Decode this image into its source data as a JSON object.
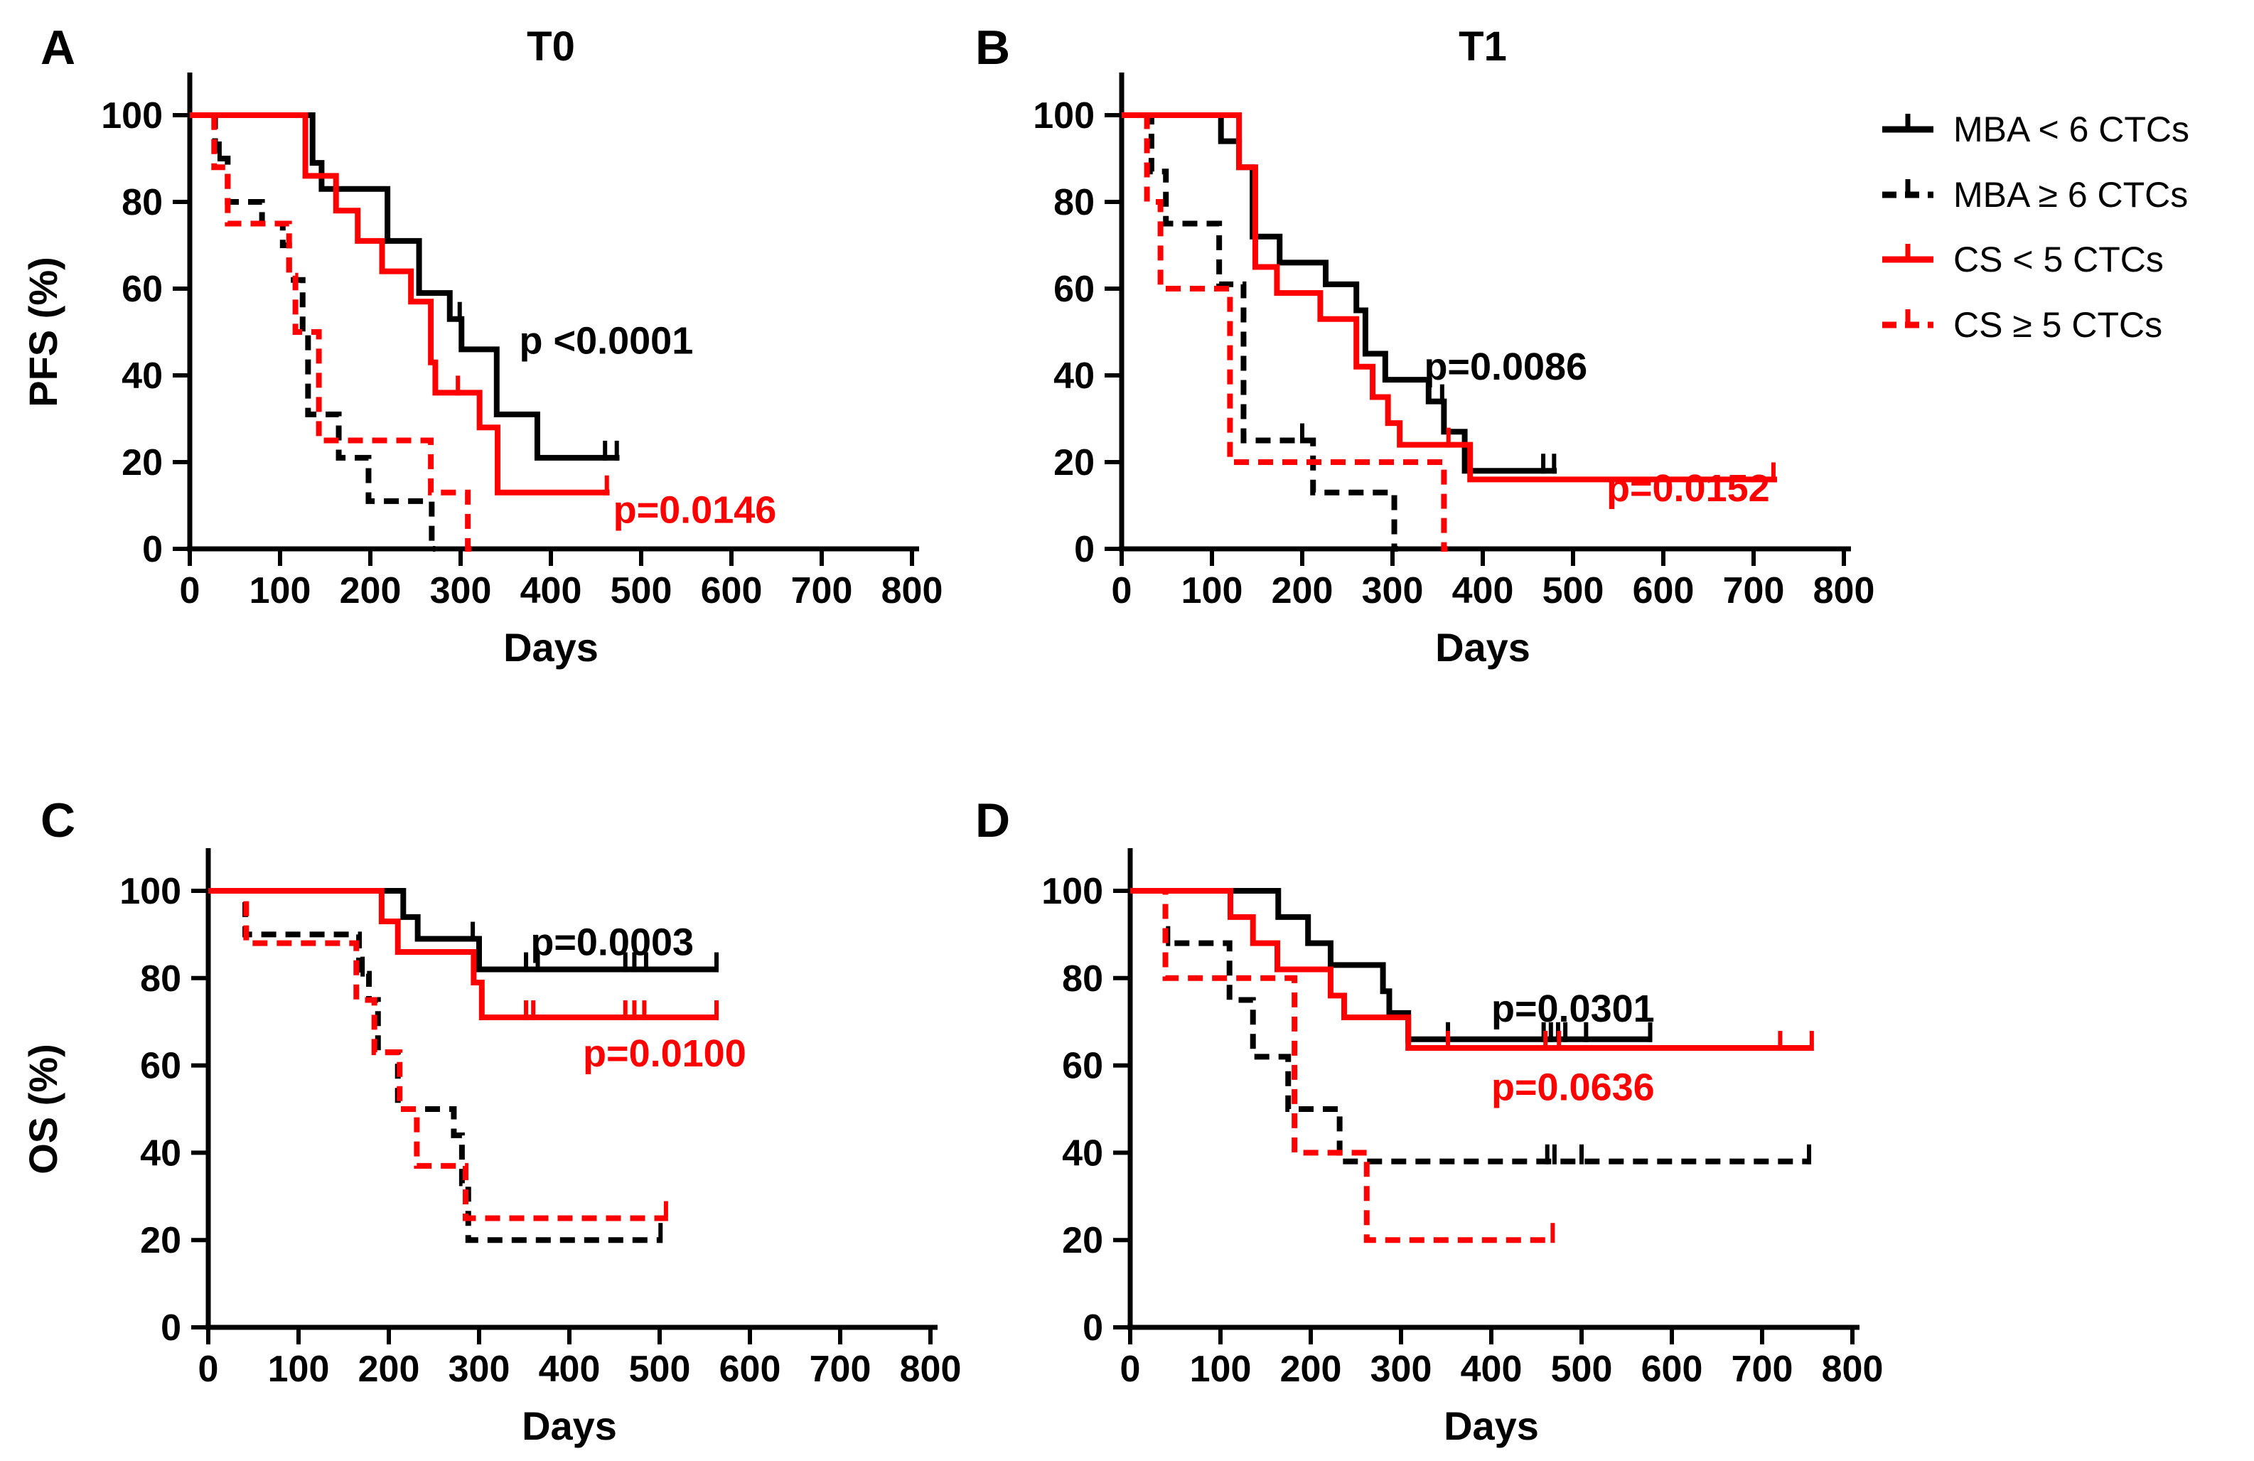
{
  "figure": {
    "kind": "kaplan-meier-survival-figure",
    "background": "#FFFFFF",
    "accent_colors": {
      "black": "#000000",
      "red": "#FF0000"
    }
  },
  "legend": {
    "entries": [
      {
        "label": "MBA < 6 CTCs",
        "color": "#000000",
        "dash": false
      },
      {
        "label": "MBA ≥ 6 CTCs",
        "color": "#000000",
        "dash": true
      },
      {
        "label": "CS < 5 CTCs",
        "color": "#FF0000",
        "dash": false
      },
      {
        "label": "CS ≥ 5 CTCs",
        "color": "#FF0000",
        "dash": true
      }
    ]
  },
  "chart_data": {
    "type": "line",
    "subtype": "kaplan-meier-step",
    "grid": false,
    "legend_position": "top-right",
    "panels": [
      {
        "id": "A",
        "letter": "A",
        "title": "T0",
        "ylabel": "PFS (%)",
        "xlabel": "Days",
        "xlim": [
          0,
          800
        ],
        "ylim": [
          0,
          100
        ],
        "xticks": [
          0,
          100,
          200,
          300,
          400,
          500,
          600,
          700,
          800
        ],
        "yticks": [
          0,
          20,
          40,
          60,
          80,
          100
        ],
        "annotations": [
          {
            "text": "p <0.0001",
            "color": "#000000",
            "day": 365,
            "pct": 45
          },
          {
            "text": "p=0.0146",
            "color": "#FF0000",
            "day": 469,
            "pct": 6
          }
        ],
        "series": [
          {
            "name": "MBA < 6 CTCs",
            "color": "#000000",
            "dash": false,
            "end": 476,
            "steps": [
              [
                0,
                100
              ],
              [
                136,
                89
              ],
              [
                146,
                83
              ],
              [
                219,
                71
              ],
              [
                254,
                59
              ],
              [
                288,
                53
              ],
              [
                301,
                46
              ],
              [
                340,
                31
              ],
              [
                385,
                21
              ]
            ],
            "censors": [
              [
                299,
                53
              ],
              [
                460,
                21
              ],
              [
                473,
                21
              ]
            ]
          },
          {
            "name": "MBA ≥ 6 CTCs",
            "color": "#000000",
            "dash": true,
            "end": 272,
            "steps": [
              [
                0,
                100
              ],
              [
                28,
                90
              ],
              [
                42,
                80
              ],
              [
                80,
                75
              ],
              [
                103,
                70
              ],
              [
                110,
                62
              ],
              [
                125,
                50
              ],
              [
                131,
                31
              ],
              [
                165,
                21
              ],
              [
                198,
                11
              ],
              [
                268,
                0
              ]
            ],
            "censors": [
              [
                33,
                90
              ]
            ]
          },
          {
            "name": "CS < 5 CTCs",
            "color": "#FF0000",
            "dash": false,
            "end": 465,
            "steps": [
              [
                0,
                100
              ],
              [
                128,
                86
              ],
              [
                162,
                78
              ],
              [
                186,
                71
              ],
              [
                213,
                64
              ],
              [
                245,
                57
              ],
              [
                267,
                43
              ],
              [
                272,
                36
              ],
              [
                321,
                28
              ],
              [
                341,
                13
              ]
            ],
            "censors": [
              [
                297,
                36
              ],
              [
                462,
                13
              ]
            ]
          },
          {
            "name": "CS ≥ 5 CTCs",
            "color": "#FF0000",
            "dash": true,
            "end": 312,
            "steps": [
              [
                0,
                100
              ],
              [
                27,
                88
              ],
              [
                42,
                75
              ],
              [
                110,
                63
              ],
              [
                117,
                50
              ],
              [
                143,
                25
              ],
              [
                267,
                13
              ],
              [
                308,
                0
              ]
            ],
            "censors": []
          }
        ]
      },
      {
        "id": "B",
        "letter": "B",
        "title": "T1",
        "ylabel": "",
        "xlabel": "Days",
        "xlim": [
          0,
          800
        ],
        "ylim": [
          0,
          100
        ],
        "xticks": [
          0,
          100,
          200,
          300,
          400,
          500,
          600,
          700,
          800
        ],
        "yticks": [
          0,
          20,
          40,
          60,
          80,
          100
        ],
        "annotations": [
          {
            "text": "p=0.0086",
            "color": "#000000",
            "day": 335,
            "pct": 39
          },
          {
            "text": "p=0.0152",
            "color": "#FF0000",
            "day": 537,
            "pct": 11
          }
        ],
        "series": [
          {
            "name": "MBA < 6 CTCs",
            "color": "#000000",
            "dash": false,
            "end": 482,
            "steps": [
              [
                0,
                100
              ],
              [
                110,
                94
              ],
              [
                130,
                88
              ],
              [
                145,
                72
              ],
              [
                175,
                66
              ],
              [
                226,
                61
              ],
              [
                260,
                55
              ],
              [
                270,
                45
              ],
              [
                292,
                39
              ],
              [
                340,
                34
              ],
              [
                357,
                27
              ],
              [
                380,
                18
              ]
            ],
            "censors": [
              [
                355,
                34
              ],
              [
                467,
                18
              ],
              [
                479,
                18
              ]
            ]
          },
          {
            "name": "MBA ≥ 6 CTCs",
            "color": "#000000",
            "dash": true,
            "end": 306,
            "steps": [
              [
                0,
                100
              ],
              [
                33,
                87
              ],
              [
                49,
                75
              ],
              [
                108,
                61
              ],
              [
                135,
                25
              ],
              [
                212,
                13
              ],
              [
                302,
                0
              ]
            ],
            "censors": [
              [
                200,
                25
              ]
            ]
          },
          {
            "name": "CS < 5 CTCs",
            "color": "#FF0000",
            "dash": false,
            "end": 726,
            "steps": [
              [
                0,
                100
              ],
              [
                130,
                88
              ],
              [
                148,
                65
              ],
              [
                172,
                59
              ],
              [
                220,
                53
              ],
              [
                260,
                42
              ],
              [
                278,
                35
              ],
              [
                295,
                29
              ],
              [
                308,
                24
              ],
              [
                386,
                16
              ]
            ],
            "censors": [
              [
                362,
                24
              ],
              [
                722,
                16
              ]
            ]
          },
          {
            "name": "CS ≥ 5 CTCs",
            "color": "#FF0000",
            "dash": true,
            "end": 361,
            "steps": [
              [
                0,
                100
              ],
              [
                28,
                80
              ],
              [
                43,
                60
              ],
              [
                120,
                20
              ],
              [
                357,
                0
              ]
            ],
            "censors": []
          }
        ]
      },
      {
        "id": "C",
        "letter": "C",
        "title": "",
        "ylabel": "OS (%)",
        "xlabel": "Days",
        "xlim": [
          0,
          800
        ],
        "ylim": [
          0,
          100
        ],
        "xticks": [
          0,
          100,
          200,
          300,
          400,
          500,
          600,
          700,
          800
        ],
        "yticks": [
          0,
          20,
          40,
          60,
          80,
          100
        ],
        "annotations": [
          {
            "text": "p=0.0003",
            "color": "#000000",
            "day": 357,
            "pct": 85.3
          },
          {
            "text": "p=0.0100",
            "color": "#FF0000",
            "day": 415,
            "pct": 59.8
          }
        ],
        "series": [
          {
            "name": "MBA < 6 CTCs",
            "color": "#000000",
            "dash": false,
            "end": 565,
            "steps": [
              [
                0,
                100
              ],
              [
                216,
                94
              ],
              [
                232,
                89
              ],
              [
                300,
                82
              ]
            ],
            "censors": [
              [
                293,
                89
              ],
              [
                352,
                82
              ],
              [
                365,
                82
              ],
              [
                462,
                82
              ],
              [
                472,
                82
              ],
              [
                485,
                82
              ],
              [
                563,
                82
              ]
            ]
          },
          {
            "name": "MBA ≥ 6 CTCs",
            "color": "#000000",
            "dash": true,
            "end": 503,
            "steps": [
              [
                0,
                100
              ],
              [
                41,
                90
              ],
              [
                167,
                81
              ],
              [
                178,
                75
              ],
              [
                188,
                63
              ],
              [
                210,
                50
              ],
              [
                272,
                44
              ],
              [
                281,
                33
              ],
              [
                288,
                20
              ]
            ],
            "censors": [
              [
                171,
                81
              ],
              [
                501,
                20
              ]
            ]
          },
          {
            "name": "CS < 5 CTCs",
            "color": "#FF0000",
            "dash": false,
            "end": 565,
            "steps": [
              [
                0,
                100
              ],
              [
                192,
                93
              ],
              [
                210,
                86
              ],
              [
                294,
                79
              ],
              [
                303,
                71
              ]
            ],
            "censors": [
              [
                352,
                71
              ],
              [
                360,
                71
              ],
              [
                462,
                71
              ],
              [
                472,
                71
              ],
              [
                483,
                71
              ],
              [
                563,
                71
              ]
            ]
          },
          {
            "name": "CS ≥ 5 CTCs",
            "color": "#FF0000",
            "dash": true,
            "end": 509,
            "steps": [
              [
                0,
                100
              ],
              [
                42,
                88
              ],
              [
                164,
                75
              ],
              [
                184,
                63
              ],
              [
                212,
                50
              ],
              [
                231,
                37
              ],
              [
                285,
                25
              ]
            ],
            "censors": [
              [
                507,
                25
              ]
            ]
          }
        ]
      },
      {
        "id": "D",
        "letter": "D",
        "title": "",
        "ylabel": "",
        "xlabel": "Days",
        "xlim": [
          0,
          800
        ],
        "ylim": [
          0,
          100
        ],
        "xticks": [
          0,
          100,
          200,
          300,
          400,
          500,
          600,
          700,
          800
        ],
        "yticks": [
          0,
          20,
          40,
          60,
          80,
          100
        ],
        "annotations": [
          {
            "text": "p=0.0301",
            "color": "#000000",
            "day": 400,
            "pct": 70
          },
          {
            "text": "p=0.0636",
            "color": "#FF0000",
            "day": 400,
            "pct": 52
          }
        ],
        "series": [
          {
            "name": "MBA < 6 CTCs",
            "color": "#000000",
            "dash": false,
            "end": 578,
            "steps": [
              [
                0,
                100
              ],
              [
                164,
                94
              ],
              [
                197,
                88
              ],
              [
                222,
                83
              ],
              [
                280,
                77
              ],
              [
                287,
                72
              ],
              [
                308,
                66
              ]
            ],
            "censors": [
              [
                352,
                66
              ],
              [
                458,
                66
              ],
              [
                466,
                66
              ],
              [
                474,
                66
              ],
              [
                482,
                66
              ],
              [
                505,
                66
              ],
              [
                576,
                66
              ]
            ]
          },
          {
            "name": "MBA ≥ 6 CTCs",
            "color": "#000000",
            "dash": true,
            "end": 754,
            "steps": [
              [
                0,
                100
              ],
              [
                39,
                88
              ],
              [
                110,
                75
              ],
              [
                136,
                62
              ],
              [
                175,
                50
              ],
              [
                232,
                38
              ]
            ],
            "censors": [
              [
                42,
                88
              ],
              [
                462,
                38
              ],
              [
                470,
                38
              ],
              [
                500,
                38
              ],
              [
                752,
                38
              ]
            ]
          },
          {
            "name": "CS < 5 CTCs",
            "color": "#FF0000",
            "dash": false,
            "end": 757,
            "steps": [
              [
                0,
                100
              ],
              [
                111,
                94
              ],
              [
                136,
                88
              ],
              [
                163,
                82
              ],
              [
                222,
                76
              ],
              [
                237,
                71
              ],
              [
                308,
                64
              ]
            ],
            "censors": [
              [
                352,
                64
              ],
              [
                460,
                64
              ],
              [
                475,
                64
              ],
              [
                720,
                64
              ],
              [
                755,
                64
              ]
            ]
          },
          {
            "name": "CS ≥ 5 CTCs",
            "color": "#FF0000",
            "dash": true,
            "end": 470,
            "steps": [
              [
                0,
                100
              ],
              [
                39,
                80
              ],
              [
                182,
                40
              ],
              [
                262,
                20
              ]
            ],
            "censors": [
              [
                468,
                20
              ]
            ]
          }
        ]
      }
    ]
  }
}
